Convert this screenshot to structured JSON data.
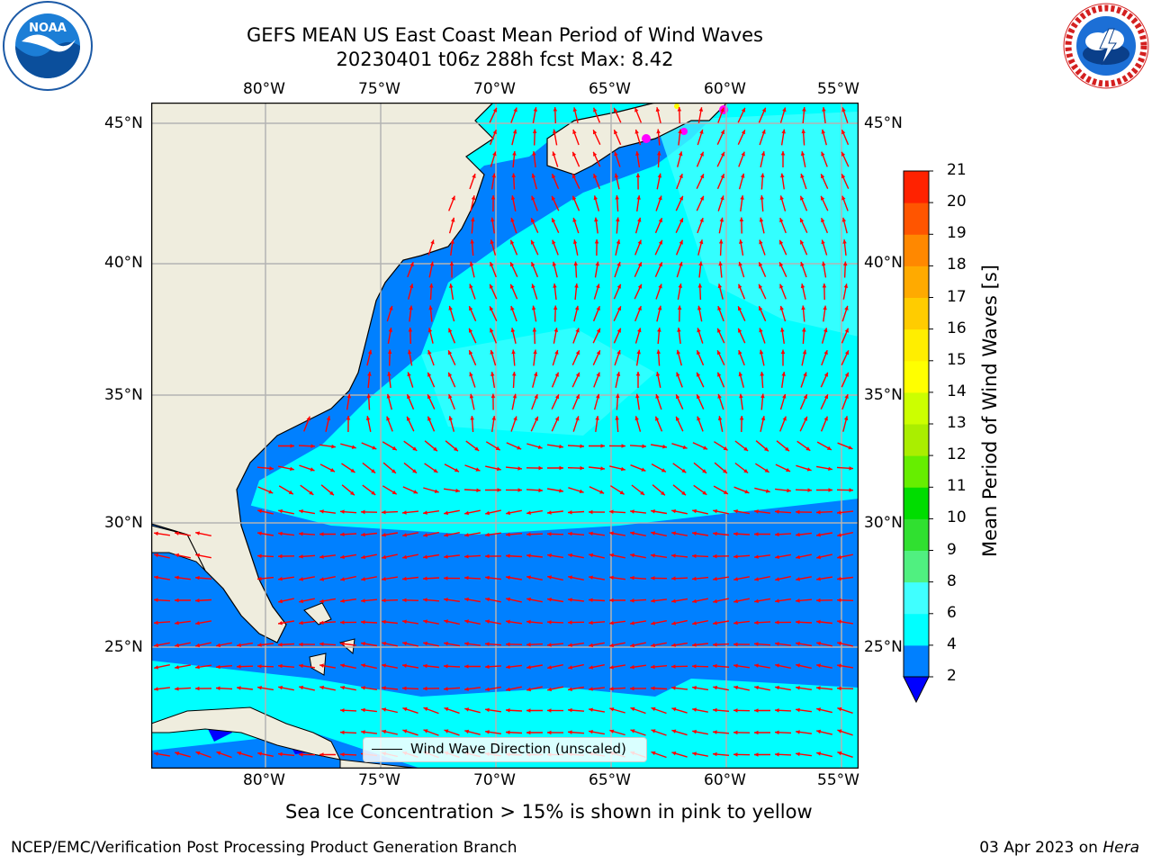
{
  "title": {
    "line1": "GEFS MEAN US East Coast Mean Period of Wind Waves",
    "line2": "20230401 t06z 288h fcst   Max: 8.42"
  },
  "logos": {
    "noaa": {
      "text": "NOAA",
      "ring": "NATIONAL OCEANIC AND ATMOSPHERIC ADMINISTRATION · U.S. DEPARTMENT OF COMMERCE"
    },
    "nws": {
      "ring": "NATIONAL WEATHER SERVICE"
    }
  },
  "map": {
    "lon_labels": [
      "80°W",
      "75°W",
      "70°W",
      "65°W",
      "60°W",
      "55°W"
    ],
    "lat_labels": [
      "45°N",
      "40°N",
      "35°N",
      "30°N",
      "25°N"
    ],
    "legend_label": "Wind Wave Direction (unscaled)",
    "colors": {
      "land": "#efedde",
      "cyan": "#00ffff",
      "blue": "#0080ff",
      "light_cyan": "#40ffff",
      "arrow": "#ff0000",
      "grid": "#b3b3b3"
    }
  },
  "colorbar": {
    "title": "Mean Period of Wind Waves [s]",
    "levels": [
      "2",
      "4",
      "6",
      "8",
      "9",
      "10",
      "11",
      "12",
      "13",
      "14",
      "15",
      "16",
      "17",
      "18",
      "19",
      "20",
      "21"
    ],
    "colors": [
      "#0080ff",
      "#00ffff",
      "#40ffff",
      "#80ffff",
      "#aaffff",
      "#50f080",
      "#30e030",
      "#00dd00",
      "#66ee00",
      "#aaee00",
      "#ccff00",
      "#ffff00",
      "#ffee00",
      "#ffcc00",
      "#ffaa00",
      "#ff8800",
      "#ff5500",
      "#ff2200",
      "#ff0000"
    ],
    "under_color": "#0000ff"
  },
  "caption": "Sea Ice Concentration > 15% is shown in pink to yellow",
  "footer": {
    "left": "NCEP/EMC/Verification Post Processing Product Generation Branch",
    "date": "03 Apr 2023 on ",
    "machine": "Hera"
  }
}
